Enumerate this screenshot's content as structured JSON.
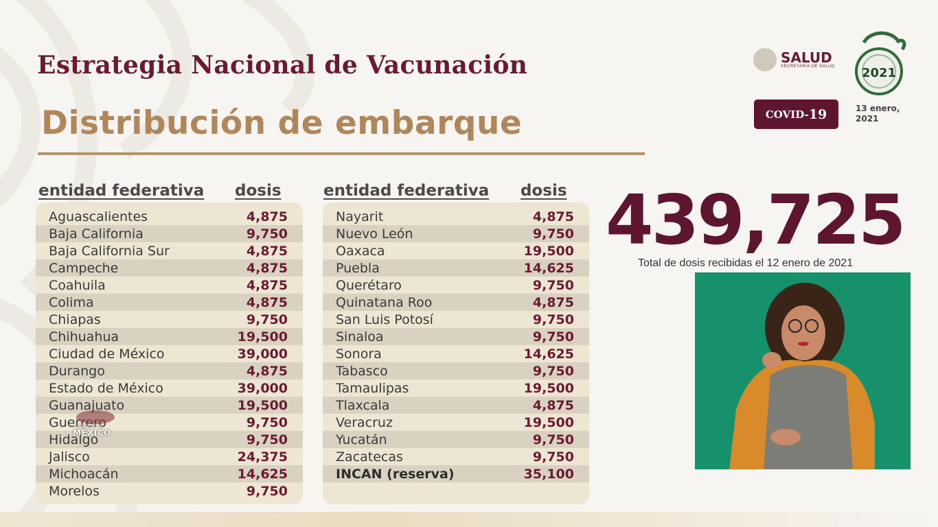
{
  "header": {
    "title": "Estrategia Nacional de Vacunación",
    "subtitle": "Distribución de embarque"
  },
  "logos": {
    "salud_name": "SALUD",
    "salud_sub": "SECRETARÍA DE SALUD",
    "covid_prefix": "COVID-",
    "covid_number": "19",
    "date_line1": "13 enero,",
    "date_line2": "2021",
    "watermark_sub": "GOBIERNO DE",
    "watermark_text": "MÉXICO"
  },
  "columns": {
    "entity_header": "entidad federativa",
    "doses_header": "dosis"
  },
  "table_left": [
    {
      "name": "Aguascalientes",
      "doses": "4,875"
    },
    {
      "name": "Baja California",
      "doses": "9,750"
    },
    {
      "name": "Baja California Sur",
      "doses": "4,875"
    },
    {
      "name": "Campeche",
      "doses": "4,875"
    },
    {
      "name": "Coahuila",
      "doses": "4,875"
    },
    {
      "name": "Colima",
      "doses": "4,875"
    },
    {
      "name": "Chiapas",
      "doses": "9,750"
    },
    {
      "name": "Chihuahua",
      "doses": "19,500"
    },
    {
      "name": "Ciudad de México",
      "doses": "39,000"
    },
    {
      "name": "Durango",
      "doses": "4,875"
    },
    {
      "name": "Estado de México",
      "doses": "39,000"
    },
    {
      "name": "Guanajuato",
      "doses": "19,500"
    },
    {
      "name": "Guerrero",
      "doses": "9,750"
    },
    {
      "name": "Hidalgo",
      "doses": "9,750"
    },
    {
      "name": "Jalisco",
      "doses": "24,375"
    },
    {
      "name": "Michoacán",
      "doses": "14,625"
    },
    {
      "name": "Morelos",
      "doses": "9,750"
    }
  ],
  "table_right": [
    {
      "name": "Nayarit",
      "doses": "4,875"
    },
    {
      "name": "Nuevo León",
      "doses": "9,750"
    },
    {
      "name": "Oaxaca",
      "doses": "19,500"
    },
    {
      "name": "Puebla",
      "doses": "14,625"
    },
    {
      "name": "Querétaro",
      "doses": "9,750"
    },
    {
      "name": "Quinatana Roo",
      "doses": "4,875"
    },
    {
      "name": "San Luis Potosí",
      "doses": "9,750"
    },
    {
      "name": "Sinaloa",
      "doses": "9,750"
    },
    {
      "name": "Sonora",
      "doses": "14,625"
    },
    {
      "name": "Tabasco",
      "doses": "9,750"
    },
    {
      "name": "Tamaulipas",
      "doses": "19,500"
    },
    {
      "name": "Tlaxcala",
      "doses": "4,875"
    },
    {
      "name": "Veracruz",
      "doses": "19,500"
    },
    {
      "name": "Yucatán",
      "doses": "9,750"
    },
    {
      "name": "Zacatecas",
      "doses": "9,750"
    },
    {
      "name": "INCAN (reserva)",
      "doses": "35,100",
      "bold": true
    }
  ],
  "summary": {
    "total": "439,725",
    "label": "Total de dosis recibidas el 12 enero de 2021"
  },
  "colors": {
    "maroon": "#6b1a34",
    "gold": "#b0875a",
    "interpreter_bg": "#15916b"
  }
}
